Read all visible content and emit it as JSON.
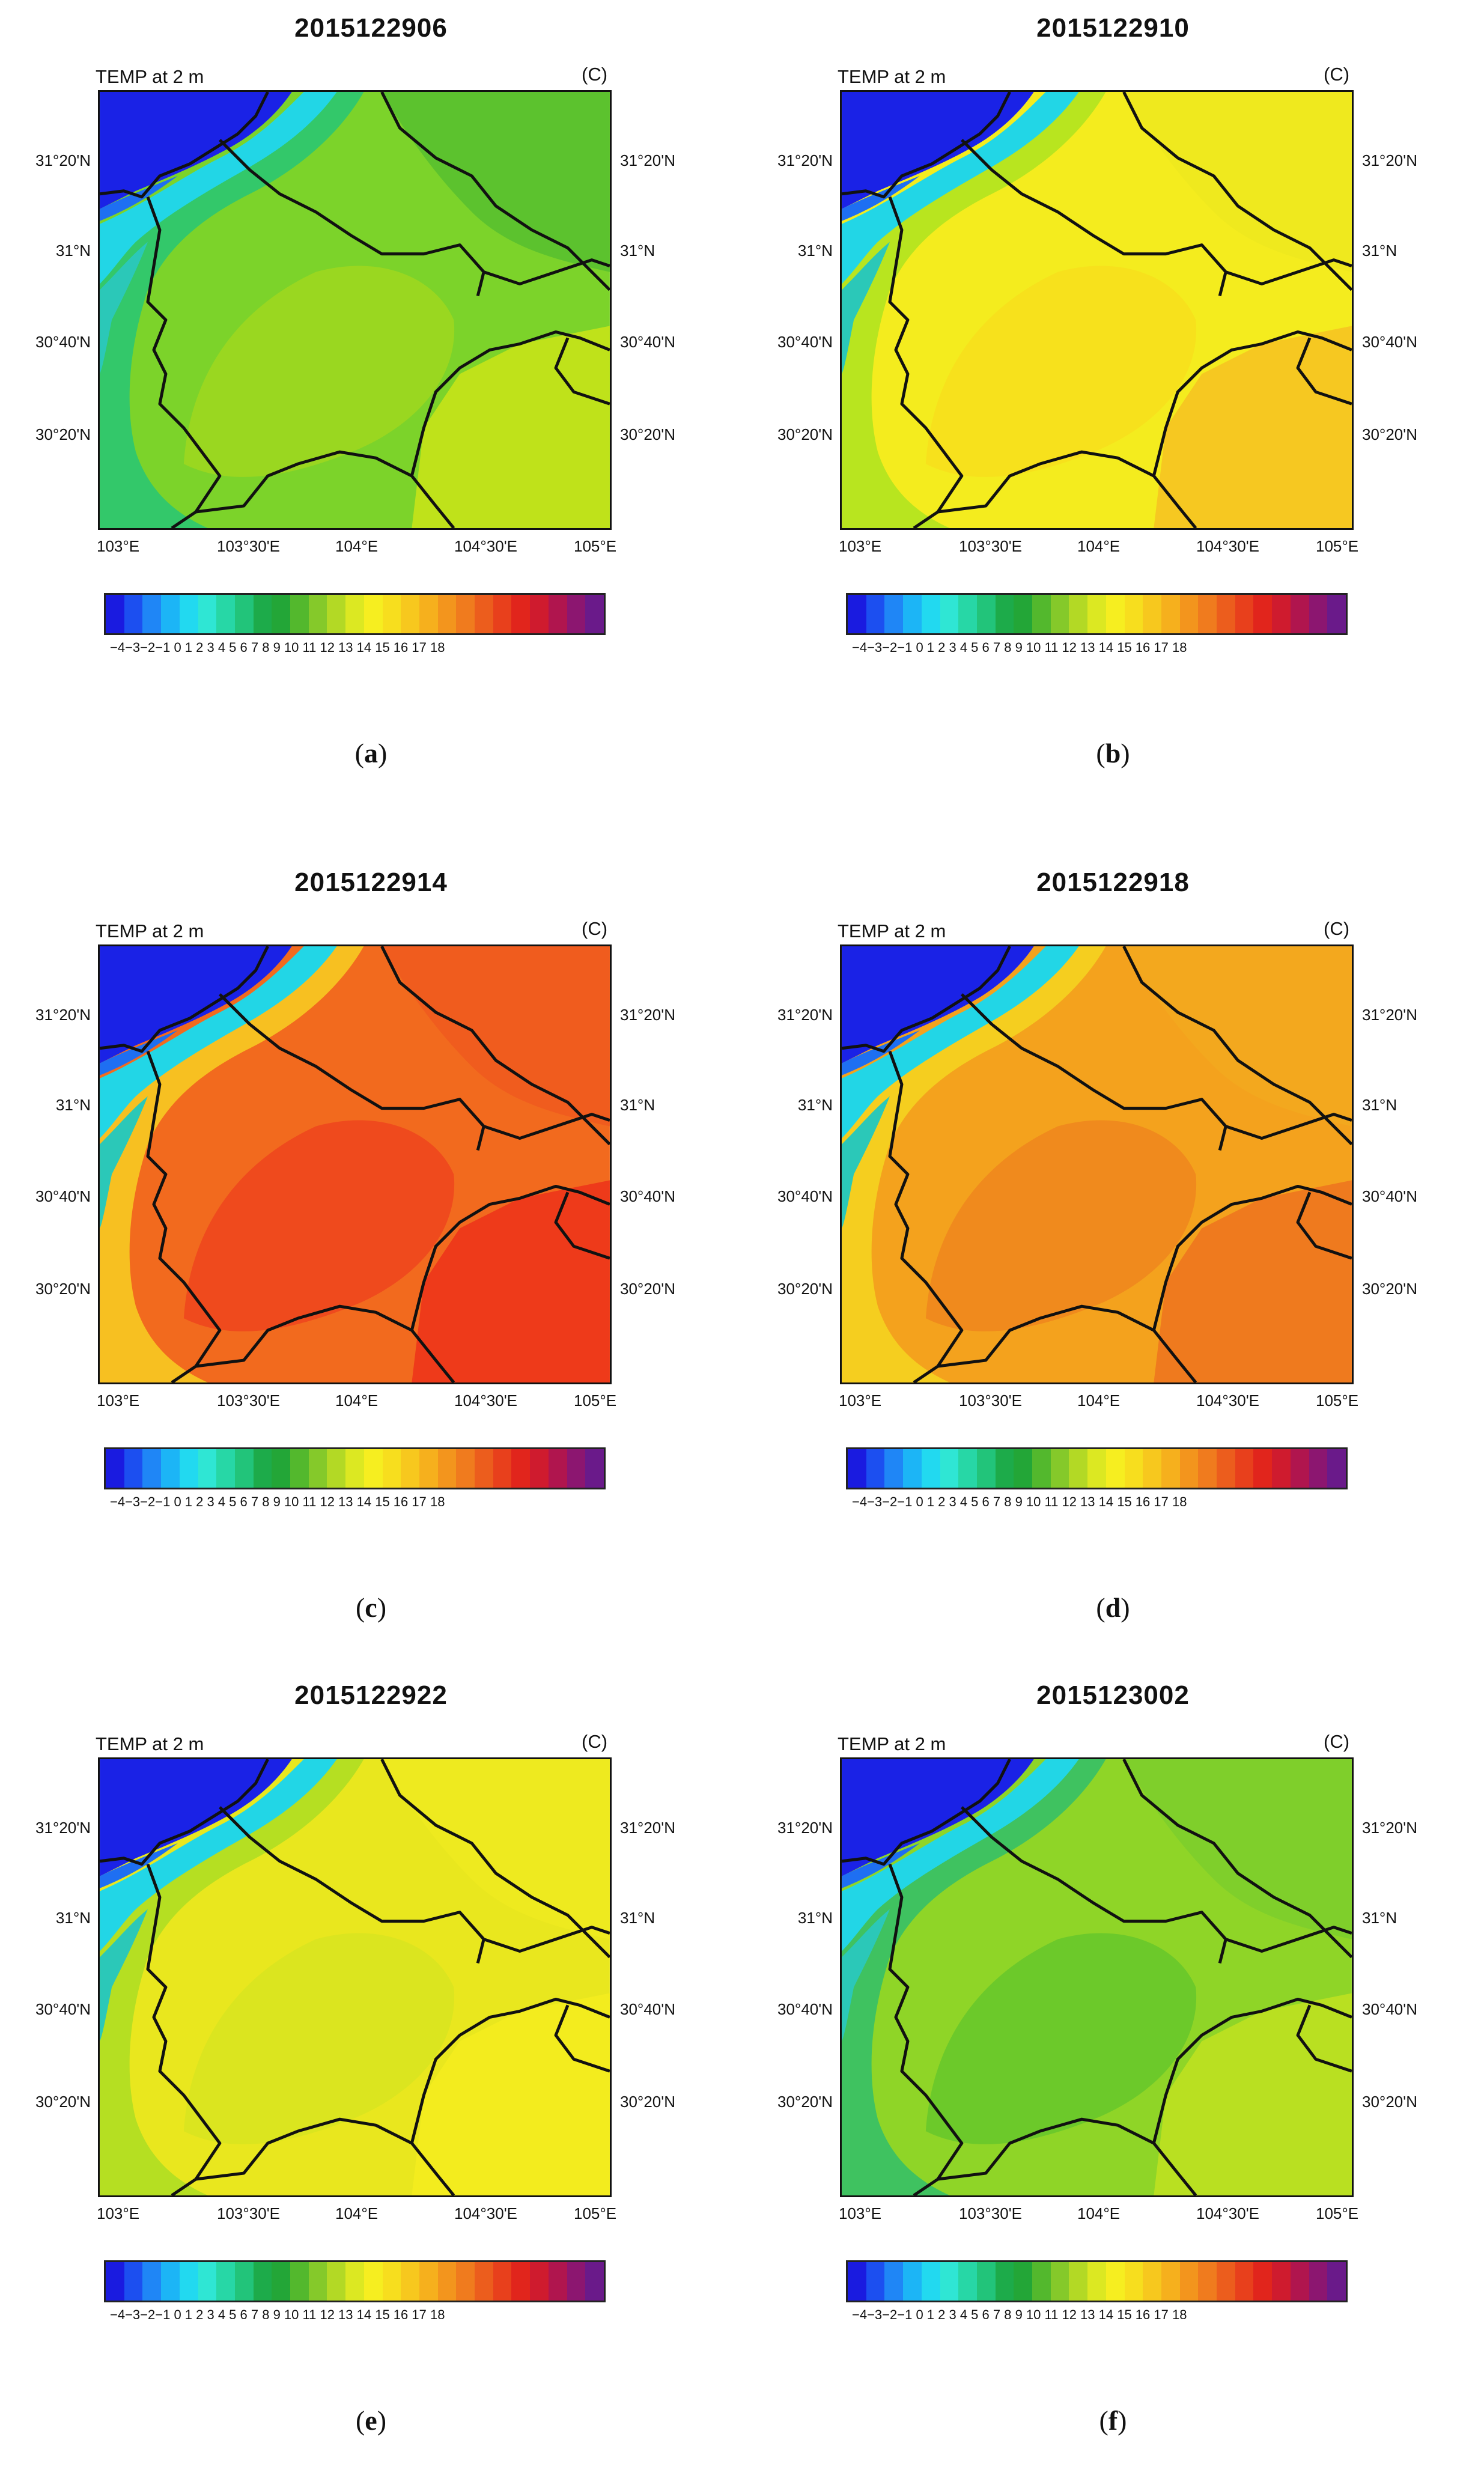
{
  "figure": {
    "panels": [
      {
        "title": "2015122906",
        "caption_letter": "a",
        "variable_label": "TEMP at 2 m",
        "unit_label": "(C)",
        "palette": {
          "outer": "#33c86a",
          "mid": "#7cd32a",
          "core": "#9ad720",
          "hot": "#bfe21a",
          "north": "#5cc22e"
        }
      },
      {
        "title": "2015122910",
        "caption_letter": "b",
        "variable_label": "TEMP at 2 m",
        "unit_label": "(C)",
        "palette": {
          "outer": "#b8e51f",
          "mid": "#f4ec1e",
          "core": "#f7e11c",
          "hot": "#f6c821",
          "north": "#efe91e"
        }
      },
      {
        "title": "2015122914",
        "caption_letter": "c",
        "variable_label": "TEMP at 2 m",
        "unit_label": "(C)",
        "palette": {
          "outer": "#f7c021",
          "mid": "#f26a1e",
          "core": "#ef4a1d",
          "hot": "#ee3a1a",
          "north": "#f05c1e"
        }
      },
      {
        "title": "2015122918",
        "caption_letter": "d",
        "variable_label": "TEMP at 2 m",
        "unit_label": "(C)",
        "palette": {
          "outer": "#f5ce1f",
          "mid": "#f4a21d",
          "core": "#f08a1d",
          "hot": "#ef7a1e",
          "north": "#f3a81e"
        }
      },
      {
        "title": "2015122922",
        "caption_letter": "e",
        "variable_label": "TEMP at 2 m",
        "unit_label": "(C)",
        "palette": {
          "outer": "#b5df22",
          "mid": "#e9e71e",
          "core": "#dbe51f",
          "hot": "#f3ec1e",
          "north": "#eeea1f"
        }
      },
      {
        "title": "2015123002",
        "caption_letter": "f",
        "variable_label": "TEMP at 2 m",
        "unit_label": "(C)",
        "palette": {
          "outer": "#3fc260",
          "mid": "#8fd527",
          "core": "#6cc92a",
          "hot": "#b9e021",
          "north": "#7fcf2b"
        }
      }
    ],
    "y_ticks": [
      "31°20'N",
      "31°N",
      "30°40'N",
      "30°20'N"
    ],
    "x_ticks": [
      "103°E",
      "103°30'E",
      "104°E",
      "104°30'E",
      "105°E"
    ],
    "colorbar": {
      "labels_text": "−4−3−2−1  0   1   2   3   4   5   6   7   8   9  10 11 12 13 14 15 16 17 18",
      "colors": [
        "#1a1be0",
        "#1c4ff0",
        "#1f86f6",
        "#1cb5f6",
        "#22d9f0",
        "#2fe6d4",
        "#27d7a6",
        "#22c47a",
        "#1dab4a",
        "#23a637",
        "#53b82d",
        "#85c92a",
        "#b3d925",
        "#dce822",
        "#f6ee20",
        "#f7de1e",
        "#f7c81e",
        "#f6b01d",
        "#f3951d",
        "#f07b1e",
        "#ec5d1d",
        "#e8401c",
        "#e1251c",
        "#cf1b2e",
        "#b0154e",
        "#8c1670",
        "#6a1a8a"
      ]
    }
  }
}
